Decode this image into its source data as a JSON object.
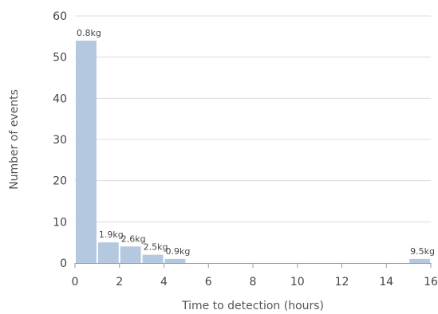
{
  "chart_data": {
    "type": "bar",
    "title": "",
    "xlabel": "Time to detection (hours)",
    "ylabel": "Number of events",
    "xlim": [
      0,
      16
    ],
    "ylim": [
      0,
      60
    ],
    "xticks": [
      0,
      2,
      4,
      6,
      8,
      10,
      12,
      14,
      16
    ],
    "yticks": [
      0,
      10,
      20,
      30,
      40,
      50,
      60
    ],
    "grid": true,
    "bar_color": "#b4c8e0",
    "bins": [
      {
        "x0": 0,
        "x1": 1,
        "value": 54,
        "label": "0.8kg"
      },
      {
        "x0": 1,
        "x1": 2,
        "value": 5,
        "label": "1.9kg"
      },
      {
        "x0": 2,
        "x1": 3,
        "value": 4,
        "label": "2.6kg"
      },
      {
        "x0": 3,
        "x1": 4,
        "value": 2,
        "label": "2.5kg"
      },
      {
        "x0": 4,
        "x1": 5,
        "value": 1,
        "label": "0.9kg"
      },
      {
        "x0": 15,
        "x1": 16,
        "value": 1,
        "label": "9.5kg"
      }
    ]
  }
}
